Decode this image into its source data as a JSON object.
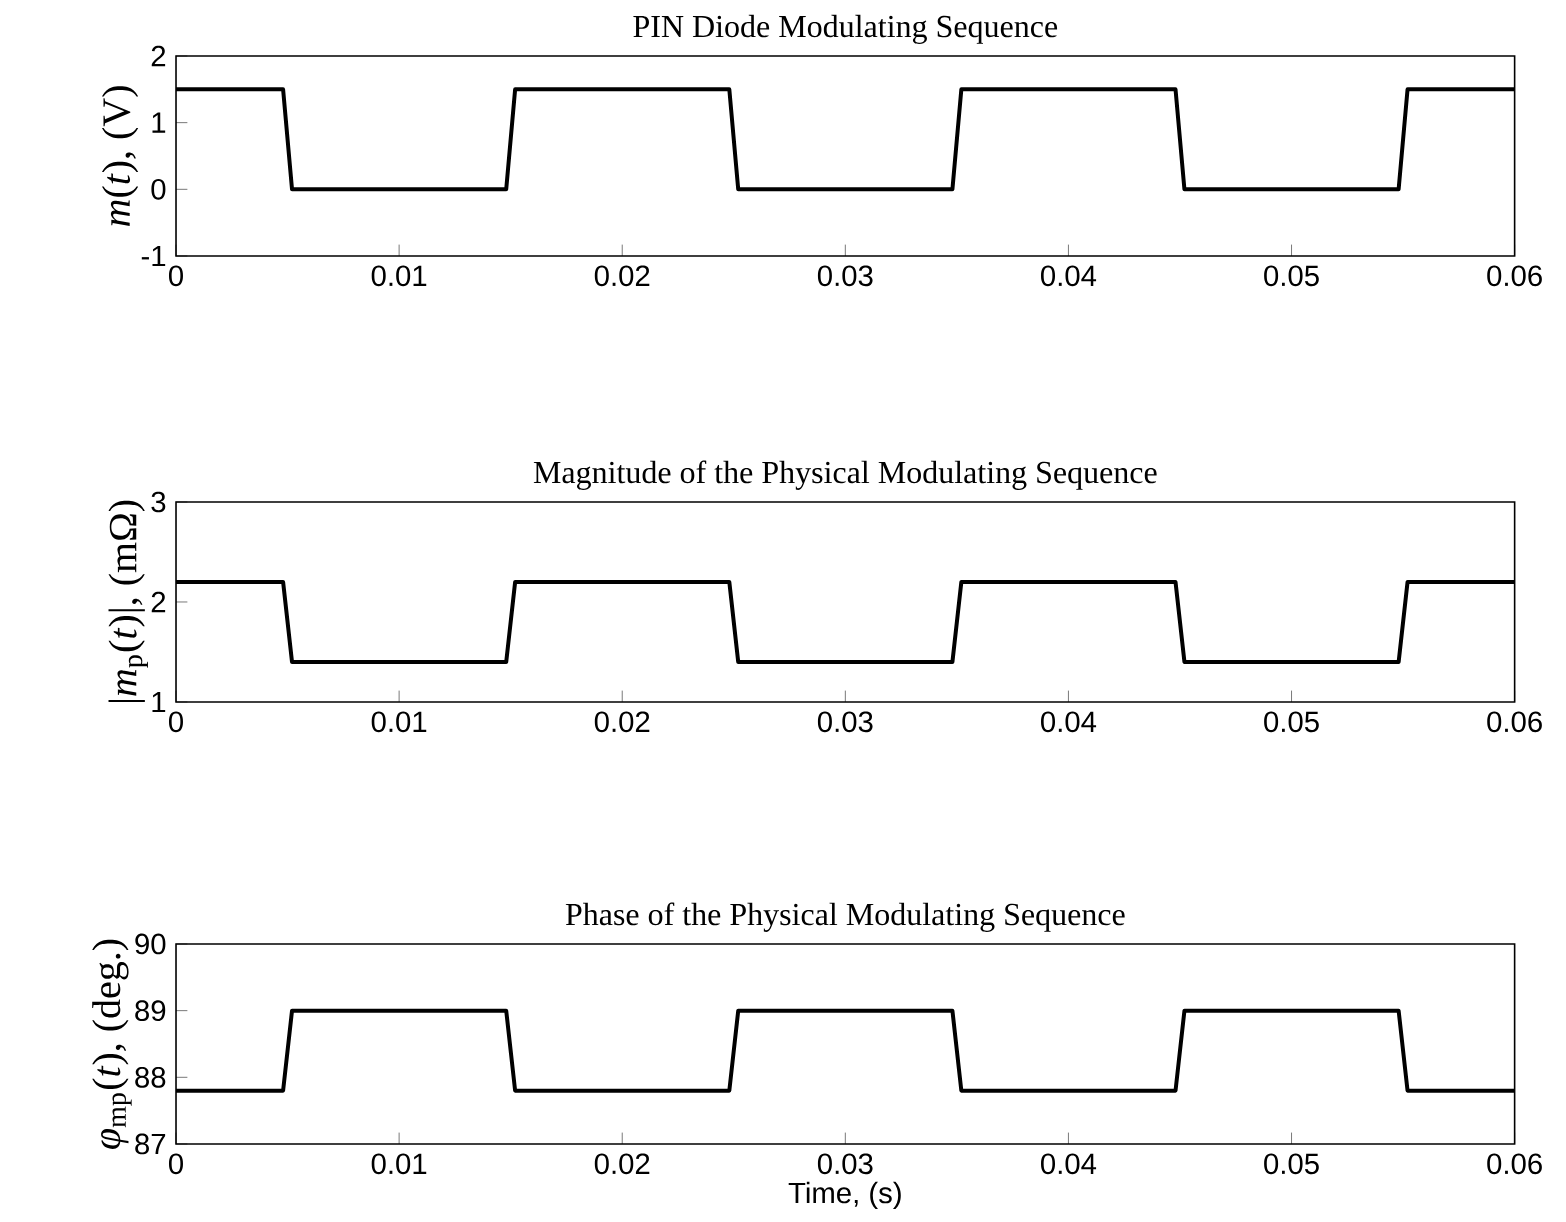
{
  "chart_data": [
    {
      "type": "line",
      "title": "PIN Diode Modulating Sequence",
      "ylabel": "*m*(*t*), (V)",
      "x": [
        0,
        0.0048,
        0.0052,
        0.0148,
        0.0152,
        0.0248,
        0.0252,
        0.0348,
        0.0352,
        0.0448,
        0.0452,
        0.0548,
        0.0552,
        0.06
      ],
      "series": [
        {
          "color": "#000000",
          "values": [
            1.5,
            1.5,
            0,
            0,
            1.5,
            1.5,
            0,
            0,
            1.5,
            1.5,
            0,
            0,
            1.5,
            1.5
          ]
        }
      ],
      "xlim": [
        0,
        0.06
      ],
      "xticks": [
        0,
        0.01,
        0.02,
        0.03,
        0.04,
        0.05,
        0.06
      ],
      "ylim": [
        -1,
        2
      ],
      "yticks": [
        -1,
        0,
        1,
        2
      ],
      "marker": "none",
      "line_style": "solid"
    },
    {
      "type": "line",
      "title": "Magnitude of the Physical Modulating Sequence",
      "ylabel": "|*m*$_{p}$(*t*)|, (mΩ)",
      "x": [
        0,
        0.0048,
        0.0052,
        0.0148,
        0.0152,
        0.0248,
        0.0252,
        0.0348,
        0.0352,
        0.0448,
        0.0452,
        0.0548,
        0.0552,
        0.06
      ],
      "series": [
        {
          "color": "#000000",
          "values": [
            2.2,
            2.2,
            1.4,
            1.4,
            2.2,
            2.2,
            1.4,
            1.4,
            2.2,
            2.2,
            1.4,
            1.4,
            2.2,
            2.2
          ]
        }
      ],
      "xlim": [
        0,
        0.06
      ],
      "xticks": [
        0,
        0.01,
        0.02,
        0.03,
        0.04,
        0.05,
        0.06
      ],
      "ylim": [
        1,
        3
      ],
      "yticks": [
        1,
        2,
        3
      ],
      "marker": "none",
      "line_style": "solid"
    },
    {
      "type": "line",
      "title": "Phase of the Physical Modulating Sequence",
      "ylabel": "*φ*$_{mp}$(*t*), (deg.)",
      "xlabel": "Time, (s)",
      "x": [
        0,
        0.0048,
        0.0052,
        0.0148,
        0.0152,
        0.0248,
        0.0252,
        0.0348,
        0.0352,
        0.0448,
        0.0452,
        0.0548,
        0.0552,
        0.06
      ],
      "series": [
        {
          "color": "#000000",
          "values": [
            87.8,
            87.8,
            89,
            89,
            87.8,
            87.8,
            89,
            89,
            87.8,
            87.8,
            89,
            89,
            87.8,
            87.8
          ]
        }
      ],
      "xlim": [
        0,
        0.06
      ],
      "xticks": [
        0,
        0.01,
        0.02,
        0.03,
        0.04,
        0.05,
        0.06
      ],
      "ylim": [
        87,
        90
      ],
      "yticks": [
        87,
        88,
        89,
        90
      ],
      "marker": "none",
      "line_style": "solid"
    }
  ]
}
